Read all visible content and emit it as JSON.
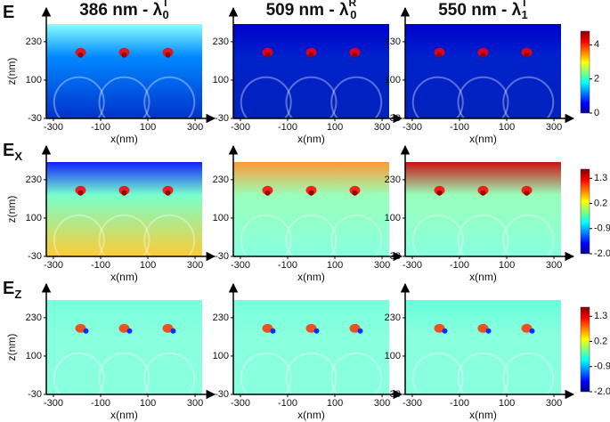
{
  "figure": {
    "columns": [
      {
        "text": "386 nm - λ",
        "sup": "T",
        "sub": "0"
      },
      {
        "text": "509 nm - λ",
        "sup": "R",
        "sub": "0"
      },
      {
        "text": "550 nm - λ",
        "sup": "T",
        "sub": "1"
      }
    ],
    "rows": [
      {
        "text": "E"
      },
      {
        "text": "E",
        "sub": "X"
      },
      {
        "text": "E",
        "sub": "Z"
      }
    ],
    "xlabel": "x(nm)",
    "ylabel": "z(nm)",
    "xlim": [
      -330,
      330
    ],
    "xticks": [
      -300,
      -100,
      100,
      300
    ],
    "ylim": [
      -30,
      290
    ],
    "yticks": [
      -30,
      100,
      230
    ],
    "colorbars": [
      {
        "clim": [
          0,
          4.8
        ],
        "ticks": [
          0,
          2,
          4
        ]
      },
      {
        "clim": [
          -2,
          1.7
        ],
        "ticks": [
          {
            "value": -2,
            "label": "-2.0"
          },
          -0.9,
          0.2,
          1.3
        ]
      },
      {
        "clim": [
          -2,
          1.7
        ],
        "ticks": [
          {
            "value": -2,
            "label": "-2.0"
          },
          -0.9,
          0.2,
          1.3
        ]
      }
    ]
  }
}
